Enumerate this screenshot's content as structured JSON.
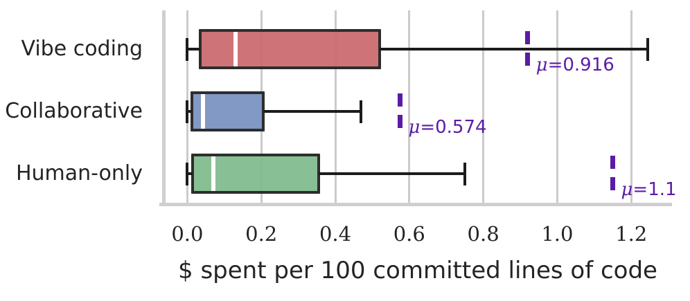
{
  "figure": {
    "background": "#ffffff",
    "text_color": "#242424",
    "grid_color": "#cbcbcb",
    "spine_color": "#cfcfcf",
    "box_edge_color": "#2d2d2d",
    "whisker_color": "#1c1c1c",
    "median_color": "#ffffff",
    "mean_color": "#5a1ca6"
  },
  "chart_data": {
    "type": "boxplot",
    "orientation": "horizontal",
    "title": "",
    "xlabel": "$ spent per 100 committed lines of code",
    "ylabel": "",
    "grid": "vertical-gridlines-on",
    "legend": "none",
    "xlim": [
      -0.064,
      1.31
    ],
    "x_ticks": [
      0.0,
      0.2,
      0.4,
      0.6,
      0.8,
      1.0,
      1.2
    ],
    "x_tick_labels": [
      "0.0",
      "0.2",
      "0.4",
      "0.6",
      "0.8",
      "1.0",
      "1.2"
    ],
    "categories": [
      "Vibe coding",
      "Collaborative",
      "Human-only"
    ],
    "mu_symbol": "μ",
    "series": [
      {
        "label": "Vibe coding",
        "min": 0.0,
        "q1": 0.035,
        "median": 0.13,
        "q3": 0.52,
        "max": 1.245,
        "mean": 0.916,
        "mean_label": "μ=0.916",
        "mean_eq_text": "=0.916",
        "mean_line_x": 0.92,
        "color": "#ca686e"
      },
      {
        "label": "Collaborative",
        "min": 0.0,
        "q1": 0.012,
        "median": 0.042,
        "q3": 0.205,
        "max": 0.47,
        "mean": 0.574,
        "mean_label": "μ=0.574",
        "mean_eq_text": "=0.574",
        "mean_line_x": 0.575,
        "color": "#7890c1"
      },
      {
        "label": "Human-only",
        "min": 0.0,
        "q1": 0.015,
        "median": 0.07,
        "q3": 0.355,
        "max": 0.75,
        "mean": 1.1,
        "mean_label": "μ=1.1",
        "mean_eq_text": "=1.1",
        "mean_line_x": 1.15,
        "color": "#7fba8c"
      }
    ]
  }
}
